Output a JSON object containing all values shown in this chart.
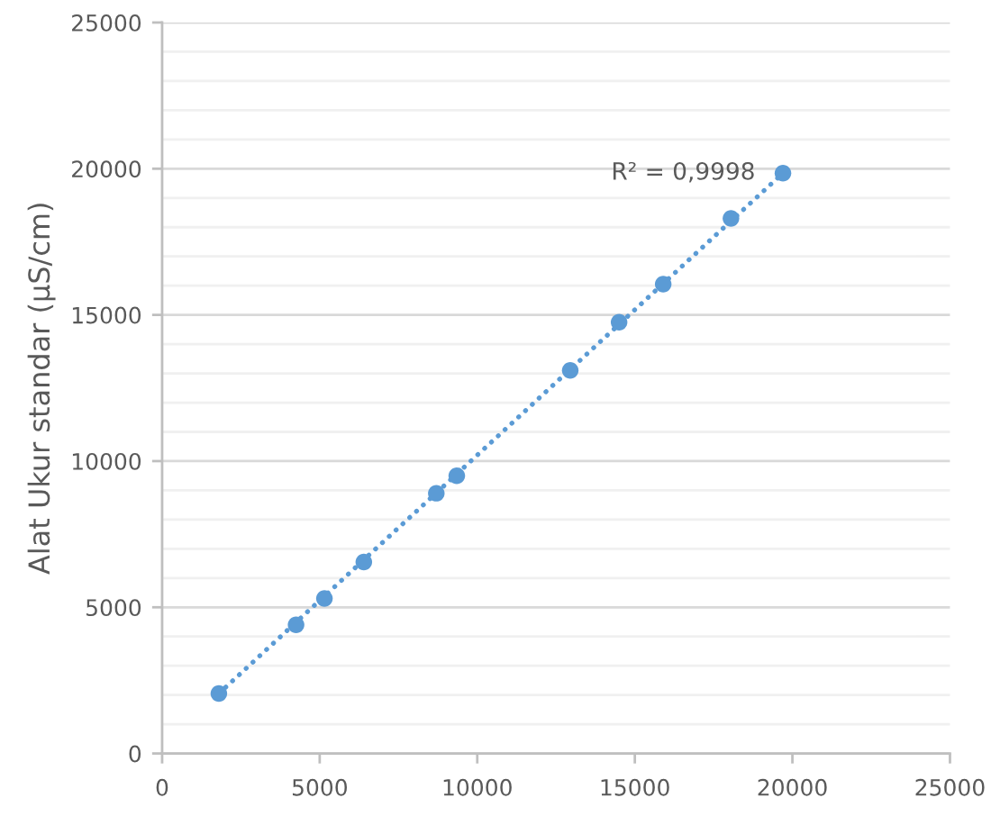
{
  "chart_data": {
    "type": "scatter",
    "ylabel": "Alat Ukur standar (µS/cm)",
    "xlim": [
      0,
      25000
    ],
    "xticks": [
      0,
      5000,
      10000,
      15000,
      20000,
      25000
    ],
    "ylim": [
      0,
      25000
    ],
    "yticks": [
      0,
      {
        "value": 1000,
        "label": null
      },
      {
        "value": 2000,
        "label": null
      },
      {
        "value": 3000,
        "label": null
      },
      {
        "value": 4000,
        "label": null
      },
      5000,
      {
        "value": 6000,
        "label": null
      },
      {
        "value": 7000,
        "label": null
      },
      {
        "value": 8000,
        "label": null
      },
      {
        "value": 9000,
        "label": null
      },
      10000,
      {
        "value": 11000,
        "label": null
      },
      {
        "value": 12000,
        "label": null
      },
      {
        "value": 13000,
        "label": null
      },
      {
        "value": 14000,
        "label": null
      },
      15000,
      {
        "value": 16000,
        "label": null
      },
      {
        "value": 17000,
        "label": null
      },
      {
        "value": 18000,
        "label": null
      },
      {
        "value": 19000,
        "label": null
      },
      20000,
      {
        "value": 21000,
        "label": null
      },
      {
        "value": 22000,
        "label": null
      },
      {
        "value": 23000,
        "label": null
      },
      {
        "value": 24000,
        "label": null
      },
      25000
    ],
    "grid": "y",
    "series": [
      {
        "marker": "circle",
        "color": "#5b9bd5",
        "x": [
          1800,
          4250,
          5150,
          6400,
          8700,
          9350,
          12950,
          14500,
          15900,
          18050,
          19700
        ],
        "values": [
          2050,
          4400,
          5300,
          6550,
          8900,
          9500,
          13100,
          14750,
          16050,
          18300,
          19850
        ]
      },
      {
        "type": "line",
        "line_style": "dotted",
        "color": "#5b9bd5",
        "x": [
          1800,
          19700
        ],
        "values": [
          2050,
          19850
        ]
      }
    ],
    "annotations": [
      {
        "text": "R² = 0,9998",
        "x": 19700,
        "y": 19850
      }
    ]
  }
}
